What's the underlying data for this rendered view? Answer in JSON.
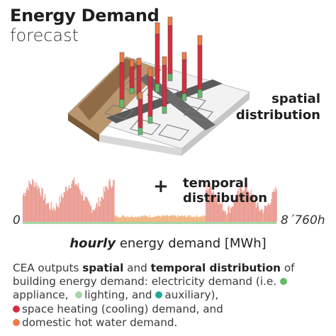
{
  "header": {
    "title": "Energy Demand",
    "subtitle": "forecast"
  },
  "labels": {
    "spatial_line1": "spatial",
    "spatial_line2": "distribution",
    "plus": "+",
    "temporal": "temporal distribution",
    "axis_start": "0",
    "axis_end": "8´760h",
    "axis_title_em": "hourly",
    "axis_title_rest": " energy demand [MWh]"
  },
  "description": {
    "p1": "CEA outputs ",
    "spatial": "spatial",
    "and": " and ",
    "temporal": "temporal distribution",
    "p2": " of building energy demand: electricity demand (i.e. ",
    "appliance": "appliance,",
    "lighting": "lighting, and",
    "auxiliary": "auxiliary),",
    "heating": "space heating (cooling) demand, and",
    "dhw": "domestic hot water demand."
  },
  "colors": {
    "appliance": "#66bb6a",
    "lighting": "#a5d6a7",
    "auxiliary": "#26a69a",
    "heating": "#d32f40",
    "dhw": "#f07a45",
    "terrain_brown": "#b9966e",
    "road": "#555555"
  },
  "icons": [
    "plus-icon"
  ]
}
